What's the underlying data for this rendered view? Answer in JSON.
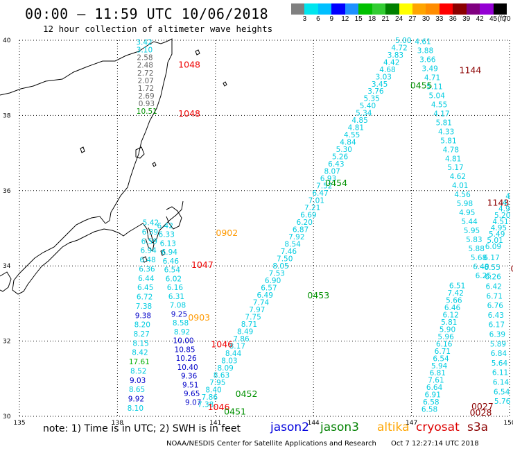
{
  "header": {
    "title": "00:00 — 11:59 UTC 10/06/2018",
    "subtitle": "12 hour collection of altimeter wave heights"
  },
  "legend": {
    "unit": "(ft)",
    "labels": [
      "3",
      "6",
      "9",
      "12",
      "15",
      "18",
      "21",
      "24",
      "27",
      "30",
      "33",
      "36",
      "39",
      "42",
      "45",
      "70"
    ],
    "colors": [
      "#808080",
      "#00e5ee",
      "#00bfff",
      "#0000ff",
      "#1e90ff",
      "#00c000",
      "#32cd32",
      "#008000",
      "#ffff00",
      "#ffa500",
      "#ff8c00",
      "#ff0000",
      "#8b0000",
      "#800080",
      "#9400d3",
      "#000000"
    ]
  },
  "map": {
    "lon_ticks": [
      "135",
      "138",
      "141",
      "144",
      "147",
      "150"
    ],
    "lat_ticks": [
      "40",
      "38",
      "36",
      "34",
      "32",
      "30"
    ],
    "lon_range": [
      135,
      150
    ],
    "lat_range": [
      30,
      40
    ]
  },
  "colors": {
    "gray": "#666666",
    "lightblue": "#00cce0",
    "blue": "#0000c8",
    "green": "#009000",
    "orange": "#ff9900",
    "red": "#ee0000",
    "darkred": "#8b0000",
    "lime": "#00b000"
  },
  "tracks": [
    {
      "name": "track-a",
      "lon0": 138.82,
      "lat0": 39.88,
      "lon1": 138.9,
      "lat1": 38.04,
      "items": [
        {
          "v": "3.42",
          "c": "lightblue"
        },
        {
          "v": "3.10",
          "c": "lightblue"
        },
        {
          "v": "2.58",
          "c": "gray"
        },
        {
          "v": "2.48",
          "c": "gray"
        },
        {
          "v": "2.72",
          "c": "gray"
        },
        {
          "v": "2.07",
          "c": "gray"
        },
        {
          "v": "1.72",
          "c": "gray"
        },
        {
          "v": "2.69",
          "c": "gray"
        },
        {
          "v": "0.93",
          "c": "gray"
        },
        {
          "v": "10.51",
          "c": "green"
        }
      ]
    },
    {
      "name": "track-b",
      "lon0": 139.02,
      "lat0": 35.08,
      "lon1": 138.55,
      "lat1": 30.15,
      "items": [
        {
          "v": "5.42",
          "c": "lightblue"
        },
        {
          "v": "6.39",
          "c": "lightblue"
        },
        {
          "v": "6.59",
          "c": "lightblue"
        },
        {
          "v": "6.94",
          "c": "lightblue"
        },
        {
          "v": "6.48",
          "c": "lightblue"
        },
        {
          "v": "6.36",
          "c": "lightblue"
        },
        {
          "v": "6.44",
          "c": "lightblue"
        },
        {
          "v": "6.45",
          "c": "lightblue"
        },
        {
          "v": "6.72",
          "c": "lightblue"
        },
        {
          "v": "7.38",
          "c": "lightblue"
        },
        {
          "v": "9.38",
          "c": "blue"
        },
        {
          "v": "8.20",
          "c": "lightblue"
        },
        {
          "v": "8.27",
          "c": "lightblue"
        },
        {
          "v": "8.15",
          "c": "lightblue"
        },
        {
          "v": "8.42",
          "c": "lightblue"
        },
        {
          "v": "17.61",
          "c": "lime"
        },
        {
          "v": "8.52",
          "c": "lightblue"
        },
        {
          "v": "9.03",
          "c": "blue"
        },
        {
          "v": "8.65",
          "c": "lightblue"
        },
        {
          "v": "9.92",
          "c": "blue"
        },
        {
          "v": "8.10",
          "c": "lightblue"
        }
      ]
    },
    {
      "name": "track-c",
      "lon0": 139.46,
      "lat0": 35.0,
      "lon1": 140.32,
      "lat1": 30.3,
      "items": [
        {
          "v": "6.42",
          "c": "lightblue"
        },
        {
          "v": "6.33",
          "c": "lightblue"
        },
        {
          "v": "6.13",
          "c": "lightblue"
        },
        {
          "v": "6.94",
          "c": "lightblue"
        },
        {
          "v": "6.46",
          "c": "lightblue"
        },
        {
          "v": "6.54",
          "c": "lightblue"
        },
        {
          "v": "6.02",
          "c": "lightblue"
        },
        {
          "v": "6.16",
          "c": "lightblue"
        },
        {
          "v": "6.31",
          "c": "lightblue"
        },
        {
          "v": "7.08",
          "c": "lightblue"
        },
        {
          "v": "9.25",
          "c": "blue"
        },
        {
          "v": "8.58",
          "c": "lightblue"
        },
        {
          "v": "8.92",
          "c": "lightblue"
        },
        {
          "v": "10.00",
          "c": "blue"
        },
        {
          "v": "10.85",
          "c": "blue"
        },
        {
          "v": "10.26",
          "c": "blue"
        },
        {
          "v": "10.40",
          "c": "blue"
        },
        {
          "v": "9.36",
          "c": "blue"
        },
        {
          "v": "9.51",
          "c": "blue"
        },
        {
          "v": "9.65",
          "c": "blue"
        },
        {
          "v": "9.07",
          "c": "blue"
        }
      ]
    },
    {
      "name": "track-d",
      "lon0": 146.75,
      "lat0": 39.93,
      "lon1": 140.7,
      "lat1": 30.25,
      "items": [
        {
          "v": "5.00",
          "c": "lightblue"
        },
        {
          "v": "4.72",
          "c": "lightblue"
        },
        {
          "v": "3.83",
          "c": "lightblue"
        },
        {
          "v": "4.42",
          "c": "lightblue"
        },
        {
          "v": "4.68",
          "c": "lightblue"
        },
        {
          "v": "3.03",
          "c": "lightblue"
        },
        {
          "v": "3.45",
          "c": "lightblue"
        },
        {
          "v": "3.76",
          "c": "lightblue"
        },
        {
          "v": "5.35",
          "c": "lightblue"
        },
        {
          "v": "5.40",
          "c": "lightblue"
        },
        {
          "v": "5.34",
          "c": "lightblue"
        },
        {
          "v": "4.85",
          "c": "lightblue"
        },
        {
          "v": "4.81",
          "c": "lightblue"
        },
        {
          "v": "4.55",
          "c": "lightblue"
        },
        {
          "v": "4.84",
          "c": "lightblue"
        },
        {
          "v": "5.30",
          "c": "lightblue"
        },
        {
          "v": "5.26",
          "c": "lightblue"
        },
        {
          "v": "6.43",
          "c": "lightblue"
        },
        {
          "v": "8.07",
          "c": "lightblue"
        },
        {
          "v": "6.93",
          "c": "lightblue"
        },
        {
          "v": "7.52",
          "c": "lightblue"
        },
        {
          "v": "6.47",
          "c": "lightblue"
        },
        {
          "v": "7.01",
          "c": "lightblue"
        },
        {
          "v": "7.21",
          "c": "lightblue"
        },
        {
          "v": "6.69",
          "c": "lightblue"
        },
        {
          "v": "6.20",
          "c": "lightblue"
        },
        {
          "v": "6.87",
          "c": "lightblue"
        },
        {
          "v": "7.92",
          "c": "lightblue"
        },
        {
          "v": "8.54",
          "c": "lightblue"
        },
        {
          "v": "7.46",
          "c": "lightblue"
        },
        {
          "v": "7.50",
          "c": "lightblue"
        },
        {
          "v": "8.05",
          "c": "lightblue"
        },
        {
          "v": "7.53",
          "c": "lightblue"
        },
        {
          "v": "6.90",
          "c": "lightblue"
        },
        {
          "v": "6.57",
          "c": "lightblue"
        },
        {
          "v": "6.49",
          "c": "lightblue"
        },
        {
          "v": "7.74",
          "c": "lightblue"
        },
        {
          "v": "7.97",
          "c": "lightblue"
        },
        {
          "v": "7.75",
          "c": "lightblue"
        },
        {
          "v": "8.71",
          "c": "lightblue"
        },
        {
          "v": "8.49",
          "c": "lightblue"
        },
        {
          "v": "7.86",
          "c": "lightblue"
        },
        {
          "v": "8.17",
          "c": "lightblue"
        },
        {
          "v": "8.44",
          "c": "lightblue"
        },
        {
          "v": "8.03",
          "c": "lightblue"
        },
        {
          "v": "8.09",
          "c": "lightblue"
        },
        {
          "v": "8.63",
          "c": "lightblue"
        },
        {
          "v": "7.95",
          "c": "lightblue"
        },
        {
          "v": "8.40",
          "c": "lightblue"
        },
        {
          "v": "7.86",
          "c": "lightblue"
        },
        {
          "v": "7.38",
          "c": "lightblue"
        }
      ]
    },
    {
      "name": "track-e",
      "lon0": 147.35,
      "lat0": 39.9,
      "lon1": 149.2,
      "lat1": 33.67,
      "items": [
        {
          "v": "4.61",
          "c": "lightblue"
        },
        {
          "v": "3.88",
          "c": "lightblue"
        },
        {
          "v": "3.66",
          "c": "lightblue"
        },
        {
          "v": "3.49",
          "c": "lightblue"
        },
        {
          "v": "4.71",
          "c": "lightblue"
        },
        {
          "v": "5.11",
          "c": "lightblue"
        },
        {
          "v": "5.04",
          "c": "lightblue"
        },
        {
          "v": "4.55",
          "c": "lightblue"
        },
        {
          "v": "4.17",
          "c": "lightblue"
        },
        {
          "v": "5.81",
          "c": "lightblue"
        },
        {
          "v": "4.33",
          "c": "lightblue"
        },
        {
          "v": "5.81",
          "c": "lightblue"
        },
        {
          "v": "4.78",
          "c": "lightblue"
        },
        {
          "v": "4.81",
          "c": "lightblue"
        },
        {
          "v": "5.17",
          "c": "lightblue"
        },
        {
          "v": "4.62",
          "c": "lightblue"
        },
        {
          "v": "4.01",
          "c": "lightblue"
        },
        {
          "v": "4.56",
          "c": "lightblue"
        },
        {
          "v": "5.98",
          "c": "lightblue"
        },
        {
          "v": "4.95",
          "c": "lightblue"
        },
        {
          "v": "5.44",
          "c": "lightblue"
        },
        {
          "v": "5.95",
          "c": "lightblue"
        },
        {
          "v": "5.83",
          "c": "lightblue"
        },
        {
          "v": "5.88",
          "c": "lightblue"
        },
        {
          "v": "5.68",
          "c": "lightblue"
        },
        {
          "v": "6.48",
          "c": "lightblue"
        },
        {
          "v": "6.25",
          "c": "lightblue"
        }
      ]
    },
    {
      "name": "track-f",
      "lon0": 148.4,
      "lat0": 33.4,
      "lon1": 147.55,
      "lat1": 30.12,
      "items": [
        {
          "v": "6.51",
          "c": "lightblue"
        },
        {
          "v": "7.42",
          "c": "lightblue"
        },
        {
          "v": "5.66",
          "c": "lightblue"
        },
        {
          "v": "6.46",
          "c": "lightblue"
        },
        {
          "v": "6.12",
          "c": "lightblue"
        },
        {
          "v": "5.81",
          "c": "lightblue"
        },
        {
          "v": "5.90",
          "c": "lightblue"
        },
        {
          "v": "5.96",
          "c": "lightblue"
        },
        {
          "v": "6.16",
          "c": "lightblue"
        },
        {
          "v": "6.71",
          "c": "lightblue"
        },
        {
          "v": "6.54",
          "c": "lightblue"
        },
        {
          "v": "5.94",
          "c": "lightblue"
        },
        {
          "v": "6.81",
          "c": "lightblue"
        },
        {
          "v": "7.61",
          "c": "lightblue"
        },
        {
          "v": "6.64",
          "c": "lightblue"
        },
        {
          "v": "6.91",
          "c": "lightblue"
        },
        {
          "v": "6.58",
          "c": "lightblue"
        },
        {
          "v": "6.58",
          "c": "lightblue"
        }
      ]
    },
    {
      "name": "track-g",
      "lon0": 149.45,
      "lat0": 34.15,
      "lon1": 149.78,
      "lat1": 30.33,
      "items": [
        {
          "v": "6.17",
          "c": "lightblue"
        },
        {
          "v": "6.55",
          "c": "lightblue"
        },
        {
          "v": "6.26",
          "c": "lightblue"
        },
        {
          "v": "6.42",
          "c": "lightblue"
        },
        {
          "v": "6.71",
          "c": "lightblue"
        },
        {
          "v": "6.76",
          "c": "lightblue"
        },
        {
          "v": "6.43",
          "c": "lightblue"
        },
        {
          "v": "6.17",
          "c": "lightblue"
        },
        {
          "v": "6.39",
          "c": "lightblue"
        },
        {
          "v": "5.89",
          "c": "lightblue"
        },
        {
          "v": "6.84",
          "c": "lightblue"
        },
        {
          "v": "5.64",
          "c": "lightblue"
        },
        {
          "v": "6.11",
          "c": "lightblue"
        },
        {
          "v": "6.14",
          "c": "lightblue"
        },
        {
          "v": "6.54",
          "c": "lightblue"
        },
        {
          "v": "5.76",
          "c": "lightblue"
        }
      ]
    },
    {
      "name": "track-h",
      "lon0": 149.95,
      "lat0": 35.78,
      "lon1": 149.5,
      "lat1": 34.45,
      "items": [
        {
          "v": "4",
          "c": "lightblue"
        },
        {
          "v": "4.",
          "c": "lightblue"
        },
        {
          "v": "4.9",
          "c": "lightblue"
        },
        {
          "v": "5.20",
          "c": "lightblue"
        },
        {
          "v": "4.51",
          "c": "lightblue"
        },
        {
          "v": "4.95",
          "c": "lightblue"
        },
        {
          "v": "5.49",
          "c": "lightblue"
        },
        {
          "v": "5.01",
          "c": "lightblue"
        },
        {
          "v": "6.09",
          "c": "lightblue"
        }
      ]
    }
  ],
  "time_labels": [
    {
      "text": "1048",
      "c": "red",
      "lon": 140.2,
      "lat": 39.27
    },
    {
      "text": "1048",
      "c": "red",
      "lon": 140.2,
      "lat": 37.97
    },
    {
      "text": "1144",
      "c": "darkred",
      "lon": 148.8,
      "lat": 39.12
    },
    {
      "text": "0455",
      "c": "green",
      "lon": 147.3,
      "lat": 38.72
    },
    {
      "text": "0454",
      "c": "green",
      "lon": 144.7,
      "lat": 36.13
    },
    {
      "text": "1143",
      "c": "darkred",
      "lon": 149.65,
      "lat": 35.6
    },
    {
      "text": "0902",
      "c": "orange",
      "lon": 141.35,
      "lat": 34.8
    },
    {
      "text": "1047",
      "c": "red",
      "lon": 140.6,
      "lat": 33.95
    },
    {
      "text": "0453",
      "c": "green",
      "lon": 144.15,
      "lat": 33.14
    },
    {
      "text": "00",
      "c": "darkred",
      "lon": 150.2,
      "lat": 33.85
    },
    {
      "text": "0903",
      "c": "orange",
      "lon": 140.5,
      "lat": 32.55
    },
    {
      "text": "1",
      "c": "darkred",
      "lon": 150.25,
      "lat": 32.04
    },
    {
      "text": "1046",
      "c": "red",
      "lon": 141.2,
      "lat": 31.84
    },
    {
      "text": "0452",
      "c": "green",
      "lon": 141.95,
      "lat": 30.52
    },
    {
      "text": "1046",
      "c": "red",
      "lon": 141.1,
      "lat": 30.17
    },
    {
      "text": "0451",
      "c": "green",
      "lon": 141.6,
      "lat": 30.05
    },
    {
      "text": "0027",
      "c": "darkred",
      "lon": 149.17,
      "lat": 30.18
    },
    {
      "text": "0028",
      "c": "darkred",
      "lon": 149.12,
      "lat": 30.02
    }
  ],
  "note": {
    "text": "note: 1) Time is in UTC; 2) SWH is in feet"
  },
  "satellites": [
    {
      "name": "jason2",
      "c": "#0000dd"
    },
    {
      "name": "jason3",
      "c": "#008000"
    },
    {
      "name": "altika",
      "c": "#ffa500"
    },
    {
      "name": "cryosat",
      "c": "#dd0000"
    },
    {
      "name": "s3a",
      "c": "#8b0000"
    }
  ],
  "footer": {
    "org": "NOAA/NESDIS Center for Satellite Applications and Research",
    "timestamp": "Oct  7 12:27:14 UTC 2018"
  }
}
